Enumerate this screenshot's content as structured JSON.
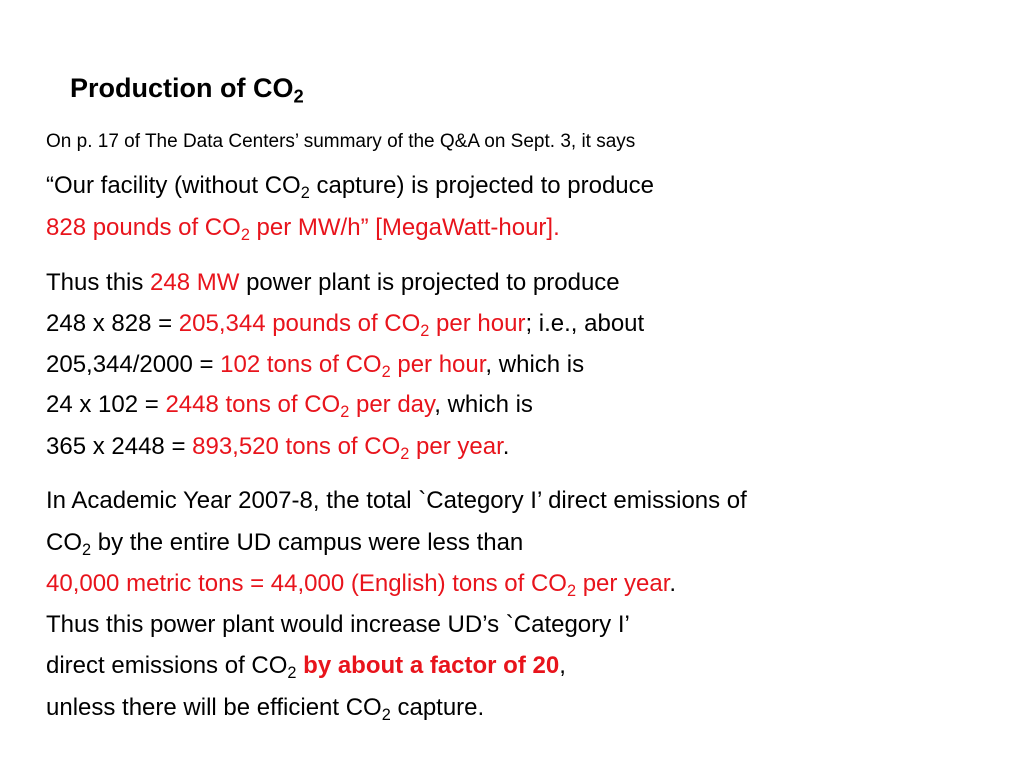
{
  "title": [
    "Production of CO",
    "2"
  ],
  "intro": "On p. 17 of The Data Centers’ summary of the Q&A on Sept. 3, it says",
  "quote": [
    [
      "“Our facility (without CO",
      "2",
      " capture) is projected to produce"
    ],
    [
      "828 pounds of CO",
      "2",
      " per MW/h” [MegaWatt-hour]."
    ]
  ],
  "calculation": [
    [
      "Thus this ",
      "248 MW",
      " power plant is projected to produce"
    ],
    [
      "248 x 828 = ",
      "205,344 pounds of CO",
      "2",
      " per hour",
      "; i.e., about"
    ],
    [
      "205,344/2000 = ",
      "102 tons of CO",
      "2",
      " per hour",
      ", which is"
    ],
    [
      "24 x 102 = ",
      "2448 tons of CO",
      "2",
      " per day",
      ", which is"
    ],
    [
      "365 x 2448 = ",
      "893,520 tons of CO",
      "2",
      " per year",
      "."
    ]
  ],
  "conclusion": [
    [
      "In Academic Year 2007-8, the total `Category I’ direct emissions of"
    ],
    [
      "CO",
      "2",
      " by the entire UD campus were less than"
    ],
    [
      "40,000 metric tons = 44,000 (English) tons of CO",
      "2",
      " per year",
      "."
    ],
    [
      "Thus this power plant would increase UD’s `Category I’"
    ],
    [
      "direct emissions of CO",
      "2",
      " by about a factor of 20",
      ","
    ],
    [
      "unless there will be efficient CO",
      "2",
      " capture."
    ]
  ]
}
